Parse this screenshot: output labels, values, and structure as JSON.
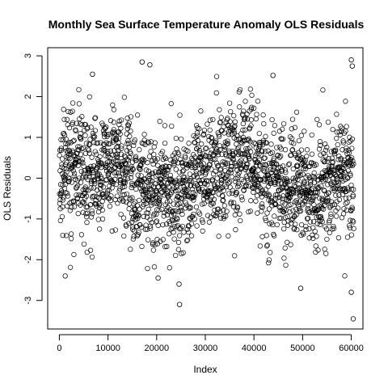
{
  "chart_data": {
    "type": "scatter",
    "title": "Monthly Sea Surface Temperature Anomaly OLS Residuals",
    "xlabel": "Index",
    "ylabel": "OLS Residuals",
    "xlim": [
      -2400,
      62400
    ],
    "ylim": [
      -3.7,
      3.2
    ],
    "x_ticks": [
      0,
      10000,
      20000,
      30000,
      40000,
      50000,
      60000
    ],
    "y_ticks": [
      -3,
      -2,
      -1,
      0,
      1,
      2,
      3
    ],
    "grid": false,
    "legend": "none",
    "marker": "open-circle",
    "n_points": 60500,
    "series": [
      {
        "values_summary": "dense band of residuals centered near 0, mostly between -1.5 and 1.5",
        "notable_points": [
          {
            "x": 17000,
            "y": 2.85
          },
          {
            "x": 18600,
            "y": 2.78
          },
          {
            "x": 6800,
            "y": 2.55
          },
          {
            "x": 43900,
            "y": 2.52
          },
          {
            "x": 60000,
            "y": 2.9
          },
          {
            "x": 60200,
            "y": 2.75
          },
          {
            "x": 24700,
            "y": -3.1
          },
          {
            "x": 49600,
            "y": -2.7
          },
          {
            "x": 60000,
            "y": -2.8
          },
          {
            "x": 60400,
            "y": -3.45
          },
          {
            "x": 1200,
            "y": -2.4
          },
          {
            "x": 20300,
            "y": -2.45
          },
          {
            "x": 24600,
            "y": -2.6
          }
        ]
      }
    ]
  }
}
